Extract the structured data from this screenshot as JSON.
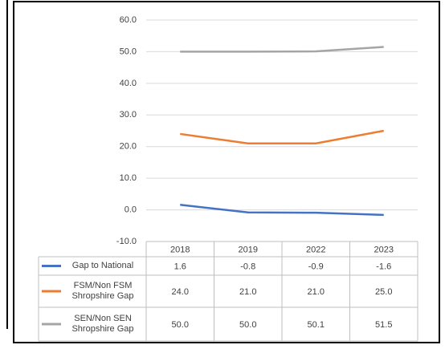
{
  "chart_data": {
    "type": "line",
    "categories": [
      "2018",
      "2019",
      "2022",
      "2023"
    ],
    "series": [
      {
        "name": "Gap to National",
        "color": "#4472c4",
        "values": [
          1.6,
          -0.8,
          -0.9,
          -1.6
        ],
        "value_labels": [
          "1.6",
          "-0.8",
          "-0.9",
          "-1.6"
        ]
      },
      {
        "name": "FSM/Non FSM Shropshire Gap",
        "color": "#ed7d31",
        "values": [
          24.0,
          21.0,
          21.0,
          25.0
        ],
        "value_labels": [
          "24.0",
          "21.0",
          "21.0",
          "25.0"
        ]
      },
      {
        "name": "SEN/Non SEN Shropshire Gap",
        "color": "#a5a5a5",
        "values": [
          50.0,
          50.0,
          50.1,
          51.5
        ],
        "value_labels": [
          "50.0",
          "50.0",
          "50.1",
          "51.5"
        ]
      }
    ],
    "ylim": [
      -10,
      60
    ],
    "yticks": [
      {
        "value": -10,
        "label": "-10.0"
      },
      {
        "value": 0,
        "label": "0.0"
      },
      {
        "value": 10,
        "label": "10.0"
      },
      {
        "value": 20,
        "label": "20.0"
      },
      {
        "value": 30,
        "label": "30.0"
      },
      {
        "value": 40,
        "label": "40.0"
      },
      {
        "value": 50,
        "label": "50.0"
      },
      {
        "value": 60,
        "label": "60.0"
      }
    ],
    "grid": true,
    "data_table": true
  }
}
